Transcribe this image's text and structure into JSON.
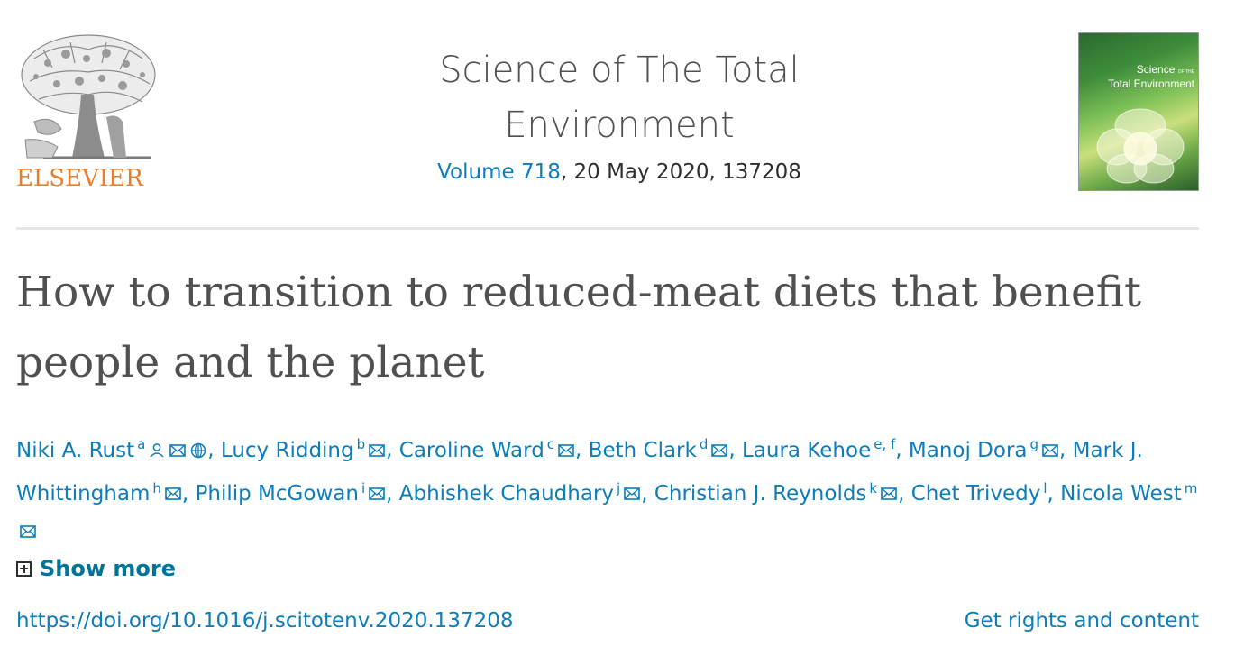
{
  "header": {
    "publisher": "ELSEVIER",
    "journal_title_line1": "Science of The Total",
    "journal_title_line2": "Environment",
    "volume_link": "Volume 718",
    "issue_rest": ", 20 May 2020, 137208",
    "cover_title_line1": "Science",
    "cover_title_line2": "Total Environment",
    "cover_of_the": "OF THE"
  },
  "article": {
    "title": "How to transition to reduced-meat diets that benefit people and the planet",
    "authors": [
      {
        "name": "Niki A. Rust",
        "aff": "a",
        "person": true,
        "email": true,
        "orcid": true
      },
      {
        "name": "Lucy Ridding",
        "aff": "b",
        "email": true
      },
      {
        "name": "Caroline Ward",
        "aff": "c",
        "email": true
      },
      {
        "name": "Beth Clark",
        "aff": "d",
        "email": true
      },
      {
        "name": "Laura Kehoe",
        "aff": "e, f",
        "email": false
      },
      {
        "name": "Manoj Dora",
        "aff": "g",
        "email": true
      },
      {
        "name": "Mark J. Whittingham",
        "aff": "h",
        "email": true
      },
      {
        "name": "Philip McGowan",
        "aff": "i",
        "email": true
      },
      {
        "name": "Abhishek Chaudhary",
        "aff": "j",
        "email": true
      },
      {
        "name": "Christian J. Reynolds",
        "aff": "k",
        "email": true
      },
      {
        "name": "Chet Trivedy",
        "aff": "l",
        "email": false
      },
      {
        "name": "Nicola West",
        "aff": "m",
        "email": true
      }
    ],
    "show_more_label": "Show more",
    "doi": "https://doi.org/10.1016/j.scitotenv.2020.137208",
    "rights_link": "Get rights and content"
  },
  "colors": {
    "link": "#0c7dbb",
    "show_more": "#007398",
    "publisher_orange": "#ea7d2b"
  }
}
